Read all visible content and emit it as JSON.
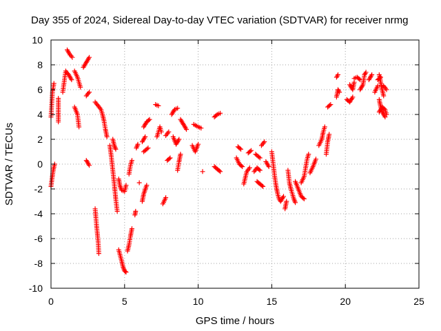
{
  "chart_data": {
    "type": "scatter",
    "title": "Day 355 of 2024, Sidereal Day-to-day VTEC variation (SDTVAR) for receiver nrmg",
    "xlabel": "GPS time / hours",
    "ylabel": "SDTVAR / TECUs",
    "xlim": [
      0,
      25
    ],
    "ylim": [
      -10,
      10
    ],
    "xticks": [
      0,
      5,
      10,
      15,
      20,
      25
    ],
    "yticks": [
      -10,
      -8,
      -6,
      -4,
      -2,
      0,
      2,
      4,
      6,
      8,
      10
    ],
    "grid": true,
    "marker": "plus",
    "series_color": "#ff0000",
    "segments": [
      [
        [
          0.0,
          3.8
        ],
        [
          0.1,
          5.8
        ],
        [
          0.2,
          6.5
        ]
      ],
      [
        [
          0.0,
          -1.8
        ],
        [
          0.15,
          -0.5
        ],
        [
          0.25,
          0.0
        ]
      ],
      [
        [
          0.5,
          3.4
        ],
        [
          0.5,
          5.3
        ]
      ],
      [
        [
          0.8,
          5.8
        ],
        [
          1.0,
          7.5
        ],
        [
          1.2,
          7.2
        ],
        [
          1.4,
          6.8
        ]
      ],
      [
        [
          1.1,
          9.2
        ],
        [
          1.3,
          8.8
        ],
        [
          1.45,
          8.6
        ]
      ],
      [
        [
          1.6,
          7.5
        ],
        [
          1.8,
          7.0
        ],
        [
          2.0,
          6.2
        ]
      ],
      [
        [
          1.6,
          4.6
        ],
        [
          1.8,
          4.0
        ],
        [
          1.9,
          3.0
        ]
      ],
      [
        [
          2.2,
          7.8
        ],
        [
          2.4,
          8.2
        ],
        [
          2.6,
          8.6
        ]
      ],
      [
        [
          2.4,
          5.5
        ],
        [
          2.6,
          5.8
        ]
      ],
      [
        [
          2.4,
          0.3
        ],
        [
          2.6,
          -0.1
        ]
      ],
      [
        [
          3.0,
          5.0
        ],
        [
          3.2,
          4.7
        ],
        [
          3.4,
          4.4
        ],
        [
          3.5,
          4.0
        ],
        [
          3.6,
          3.5
        ],
        [
          3.7,
          2.8
        ],
        [
          3.8,
          2.2
        ]
      ],
      [
        [
          3.0,
          -3.6
        ],
        [
          3.1,
          -5.0
        ],
        [
          3.2,
          -6.2
        ],
        [
          3.25,
          -7.2
        ]
      ],
      [
        [
          4.0,
          1.5
        ],
        [
          4.1,
          0.6
        ],
        [
          4.2,
          -0.5
        ],
        [
          4.3,
          -1.6
        ],
        [
          4.4,
          -2.8
        ],
        [
          4.5,
          -3.8
        ]
      ],
      [
        [
          4.2,
          2.0
        ],
        [
          4.3,
          1.5
        ],
        [
          4.4,
          1.2
        ]
      ],
      [
        [
          4.6,
          -1.2
        ],
        [
          4.7,
          -1.8
        ],
        [
          4.8,
          -2.1
        ],
        [
          5.0,
          -2.2
        ],
        [
          5.1,
          -1.7
        ]
      ],
      [
        [
          4.6,
          -6.9
        ],
        [
          4.8,
          -7.8
        ],
        [
          4.9,
          -8.3
        ],
        [
          5.0,
          -8.6
        ],
        [
          5.1,
          -8.7
        ]
      ],
      [
        [
          5.2,
          -7.0
        ],
        [
          5.3,
          -6.5
        ],
        [
          5.4,
          -5.8
        ],
        [
          5.5,
          -5.2
        ]
      ],
      [
        [
          5.3,
          -0.8
        ],
        [
          5.4,
          -0.1
        ],
        [
          5.5,
          0.3
        ]
      ],
      [
        [
          5.7,
          -4.1
        ],
        [
          5.75,
          -3.8
        ]
      ],
      [
        [
          5.8,
          1.3
        ],
        [
          5.9,
          1.6
        ]
      ],
      [
        [
          6.0,
          -1.5
        ]
      ],
      [
        [
          6.2,
          1.8
        ],
        [
          6.4,
          2.2
        ]
      ],
      [
        [
          6.2,
          -3.0
        ],
        [
          6.3,
          -2.4
        ],
        [
          6.5,
          -1.7
        ]
      ],
      [
        [
          6.3,
          1.0
        ],
        [
          6.6,
          1.3
        ]
      ],
      [
        [
          6.3,
          3.0
        ],
        [
          6.5,
          3.4
        ],
        [
          6.7,
          3.6
        ]
      ],
      [
        [
          7.1,
          4.8
        ],
        [
          7.3,
          4.7
        ]
      ],
      [
        [
          7.2,
          2.2
        ],
        [
          7.4,
          3.0
        ],
        [
          7.5,
          2.6
        ]
      ],
      [
        [
          7.6,
          -3.2
        ],
        [
          7.8,
          -2.7
        ]
      ],
      [
        [
          7.8,
          2.3
        ],
        [
          8.0,
          2.6
        ]
      ],
      [
        [
          7.9,
          0.3
        ],
        [
          8.1,
          0.5
        ]
      ],
      [
        [
          8.2,
          4.0
        ],
        [
          8.4,
          4.4
        ],
        [
          8.6,
          4.5
        ]
      ],
      [
        [
          8.3,
          2.2
        ],
        [
          8.5,
          1.6
        ],
        [
          8.7,
          2.0
        ]
      ],
      [
        [
          8.6,
          -0.5
        ],
        [
          8.7,
          0.2
        ],
        [
          8.8,
          0.8
        ]
      ],
      [
        [
          8.8,
          3.6
        ],
        [
          9.0,
          3.2
        ],
        [
          9.2,
          2.8
        ]
      ],
      [
        [
          9.6,
          1.5
        ],
        [
          9.8,
          1.0
        ],
        [
          10.0,
          1.6
        ]
      ],
      [
        [
          9.7,
          3.2
        ],
        [
          10.0,
          3.0
        ],
        [
          10.2,
          2.9
        ]
      ],
      [
        [
          10.3,
          -0.6
        ]
      ],
      [
        [
          11.1,
          3.8
        ],
        [
          11.3,
          4.0
        ],
        [
          11.5,
          4.1
        ]
      ],
      [
        [
          11.1,
          -0.2
        ],
        [
          11.3,
          -0.4
        ],
        [
          11.5,
          -0.6
        ]
      ],
      [
        [
          12.6,
          0.5
        ],
        [
          12.8,
          0.0
        ],
        [
          13.0,
          -0.2
        ]
      ],
      [
        [
          12.7,
          1.4
        ],
        [
          12.9,
          1.2
        ]
      ],
      [
        [
          13.1,
          -1.6
        ],
        [
          13.3,
          -0.6
        ],
        [
          13.5,
          -0.3
        ]
      ],
      [
        [
          13.4,
          0.9
        ],
        [
          13.6,
          1.1
        ]
      ],
      [
        [
          13.8,
          -0.6
        ],
        [
          14.0,
          -0.3
        ],
        [
          14.2,
          -0.5
        ]
      ],
      [
        [
          13.9,
          0.8
        ],
        [
          14.2,
          0.5
        ]
      ],
      [
        [
          14.0,
          -1.4
        ],
        [
          14.2,
          -1.6
        ],
        [
          14.4,
          -1.8
        ]
      ],
      [
        [
          14.3,
          1.5
        ],
        [
          14.5,
          1.8
        ]
      ],
      [
        [
          14.6,
          0.2
        ],
        [
          14.8,
          -0.2
        ]
      ],
      [
        [
          15.0,
          1.0
        ],
        [
          15.1,
          0.0
        ],
        [
          15.2,
          -1.0
        ],
        [
          15.3,
          -1.8
        ],
        [
          15.4,
          -2.4
        ],
        [
          15.5,
          -2.8
        ],
        [
          15.6,
          -3.0
        ],
        [
          15.7,
          -2.8
        ],
        [
          15.8,
          -2.6
        ]
      ],
      [
        [
          15.9,
          -3.6
        ],
        [
          16.0,
          -3.0
        ]
      ],
      [
        [
          16.1,
          -0.5
        ],
        [
          16.2,
          -1.5
        ],
        [
          16.3,
          -2.0
        ],
        [
          16.4,
          -2.4
        ],
        [
          16.5,
          -2.8
        ],
        [
          16.6,
          -3.1
        ]
      ],
      [
        [
          16.6,
          -1.4
        ],
        [
          16.8,
          -2.0
        ],
        [
          17.0,
          -2.6
        ],
        [
          17.2,
          -2.8
        ]
      ],
      [
        [
          17.0,
          -1.5
        ],
        [
          17.2,
          -1.0
        ],
        [
          17.3,
          -0.3
        ],
        [
          17.4,
          0.4
        ],
        [
          17.5,
          0.8
        ]
      ],
      [
        [
          17.6,
          -0.7
        ],
        [
          17.8,
          -0.2
        ],
        [
          18.0,
          0.4
        ]
      ],
      [
        [
          18.2,
          1.5
        ],
        [
          18.4,
          2.0
        ],
        [
          18.5,
          2.6
        ],
        [
          18.6,
          3.0
        ]
      ],
      [
        [
          18.7,
          0.8
        ],
        [
          18.8,
          1.8
        ],
        [
          18.9,
          2.4
        ]
      ],
      [
        [
          18.8,
          4.6
        ],
        [
          19.0,
          4.8
        ]
      ],
      [
        [
          19.4,
          5.4
        ],
        [
          19.5,
          6.0
        ],
        [
          19.6,
          5.8
        ]
      ],
      [
        [
          19.4,
          7.0
        ],
        [
          19.5,
          7.2
        ]
      ],
      [
        [
          20.1,
          5.2
        ],
        [
          20.3,
          5.0
        ],
        [
          20.5,
          5.4
        ]
      ],
      [
        [
          20.3,
          6.4
        ],
        [
          20.5,
          6.0
        ],
        [
          20.6,
          6.6
        ]
      ],
      [
        [
          20.6,
          6.9
        ],
        [
          20.8,
          7.0
        ],
        [
          21.0,
          6.8
        ]
      ],
      [
        [
          21.0,
          6.0
        ],
        [
          21.2,
          6.4
        ],
        [
          21.3,
          7.2
        ],
        [
          21.4,
          7.4
        ]
      ],
      [
        [
          21.6,
          6.8
        ],
        [
          21.8,
          7.2
        ]
      ],
      [
        [
          22.0,
          5.8
        ],
        [
          22.2,
          6.3
        ]
      ],
      [
        [
          22.2,
          6.8
        ],
        [
          22.4,
          7.0
        ]
      ],
      [
        [
          22.3,
          7.2
        ],
        [
          22.4,
          6.6
        ],
        [
          22.5,
          6.0
        ],
        [
          22.6,
          5.5
        ]
      ],
      [
        [
          22.3,
          5.2
        ],
        [
          22.4,
          4.6
        ],
        [
          22.5,
          4.2
        ],
        [
          22.6,
          4.0
        ],
        [
          22.7,
          3.8
        ]
      ],
      [
        [
          22.6,
          6.3
        ],
        [
          22.8,
          6.0
        ]
      ],
      [
        [
          22.3,
          4.2
        ],
        [
          22.5,
          4.6
        ],
        [
          22.7,
          4.4
        ],
        [
          22.8,
          4.0
        ]
      ]
    ]
  }
}
